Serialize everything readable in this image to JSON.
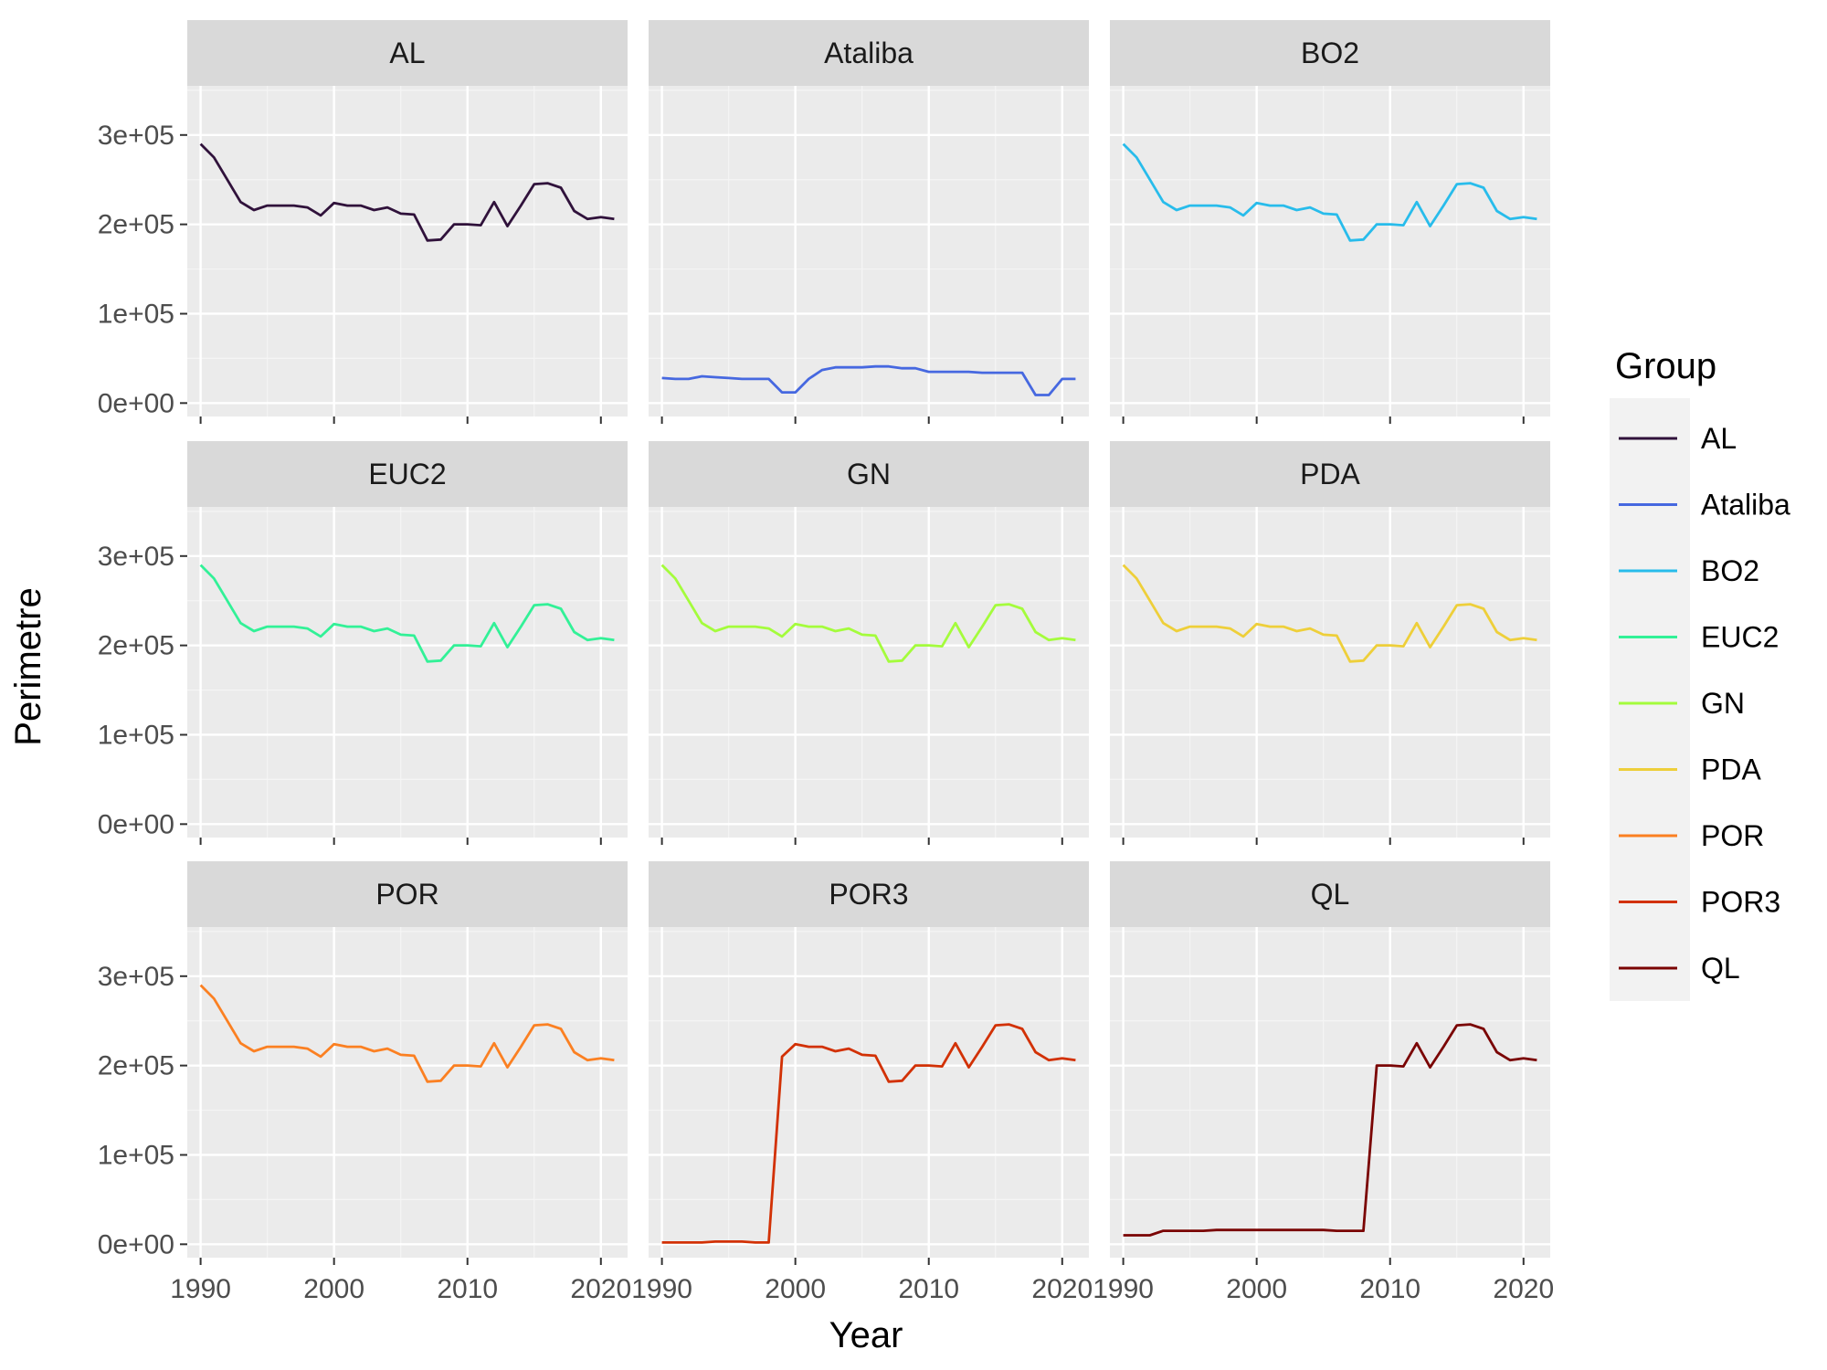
{
  "chart_data": {
    "type": "line",
    "xlabel": "Year",
    "ylabel": "Perimetre",
    "xlim": [
      1989,
      2022
    ],
    "ylim": [
      -15000,
      355000
    ],
    "x_ticks": [
      1990,
      2000,
      2010,
      2020
    ],
    "x_tick_labels": [
      "1990",
      "2000",
      "2010",
      "2020"
    ],
    "y_ticks": [
      0,
      100000,
      200000,
      300000
    ],
    "y_tick_labels": [
      "0e+00",
      "1e+05",
      "2e+05",
      "3e+05"
    ],
    "facets_layout": "3x3",
    "grid": true,
    "legend": {
      "title": "Group",
      "position": "right",
      "entries": [
        "AL",
        "Ataliba",
        "BO2",
        "EUC2",
        "GN",
        "PDA",
        "POR",
        "POR3",
        "QL"
      ]
    },
    "x": [
      1990,
      1991,
      1992,
      1993,
      1994,
      1995,
      1996,
      1997,
      1998,
      1999,
      2000,
      2001,
      2002,
      2003,
      2004,
      2005,
      2006,
      2007,
      2008,
      2009,
      2010,
      2011,
      2012,
      2013,
      2014,
      2015,
      2016,
      2017,
      2018,
      2019,
      2020,
      2021
    ],
    "series": [
      {
        "name": "AL",
        "color": "#30123b",
        "values": [
          290000,
          275000,
          250000,
          225000,
          216000,
          221000,
          221000,
          221000,
          219000,
          210000,
          224000,
          221000,
          221000,
          216000,
          219000,
          212000,
          211000,
          182000,
          183000,
          200000,
          200000,
          199000,
          225000,
          198000,
          221000,
          245000,
          246000,
          241000,
          215000,
          206000,
          208000,
          206000
        ]
      },
      {
        "name": "Ataliba",
        "color": "#4668e0",
        "values": [
          28000,
          27000,
          27000,
          30000,
          29000,
          28000,
          27000,
          27000,
          27000,
          12000,
          12000,
          27000,
          37000,
          40000,
          40000,
          40000,
          41000,
          41000,
          39000,
          39000,
          35000,
          35000,
          35000,
          35000,
          34000,
          34000,
          34000,
          34000,
          9000,
          9000,
          27000,
          27000
        ]
      },
      {
        "name": "BO2",
        "color": "#28bceb",
        "values": [
          290000,
          275000,
          250000,
          225000,
          216000,
          221000,
          221000,
          221000,
          219000,
          210000,
          224000,
          221000,
          221000,
          216000,
          219000,
          212000,
          211000,
          182000,
          183000,
          200000,
          200000,
          199000,
          225000,
          198000,
          221000,
          245000,
          246000,
          241000,
          215000,
          206000,
          208000,
          206000
        ]
      },
      {
        "name": "EUC2",
        "color": "#32f197",
        "values": [
          290000,
          275000,
          250000,
          225000,
          216000,
          221000,
          221000,
          221000,
          219000,
          210000,
          224000,
          221000,
          221000,
          216000,
          219000,
          212000,
          211000,
          182000,
          183000,
          200000,
          200000,
          199000,
          225000,
          198000,
          221000,
          245000,
          246000,
          241000,
          215000,
          206000,
          208000,
          206000
        ]
      },
      {
        "name": "GN",
        "color": "#a4fc3c",
        "values": [
          290000,
          275000,
          250000,
          225000,
          216000,
          221000,
          221000,
          221000,
          219000,
          210000,
          224000,
          221000,
          221000,
          216000,
          219000,
          212000,
          211000,
          182000,
          183000,
          200000,
          200000,
          199000,
          225000,
          198000,
          221000,
          245000,
          246000,
          241000,
          215000,
          206000,
          208000,
          206000
        ]
      },
      {
        "name": "PDA",
        "color": "#eecf3a",
        "values": [
          290000,
          275000,
          250000,
          225000,
          216000,
          221000,
          221000,
          221000,
          219000,
          210000,
          224000,
          221000,
          221000,
          216000,
          219000,
          212000,
          211000,
          182000,
          183000,
          200000,
          200000,
          199000,
          225000,
          198000,
          221000,
          245000,
          246000,
          241000,
          215000,
          206000,
          208000,
          206000
        ]
      },
      {
        "name": "POR",
        "color": "#fb8022",
        "values": [
          290000,
          275000,
          250000,
          225000,
          216000,
          221000,
          221000,
          221000,
          219000,
          210000,
          224000,
          221000,
          221000,
          216000,
          219000,
          212000,
          211000,
          182000,
          183000,
          200000,
          200000,
          199000,
          225000,
          198000,
          221000,
          245000,
          246000,
          241000,
          215000,
          206000,
          208000,
          206000
        ]
      },
      {
        "name": "POR3",
        "color": "#d23105",
        "values": [
          2000,
          2000,
          2000,
          2000,
          3000,
          3000,
          3000,
          2000,
          2000,
          210000,
          224000,
          221000,
          221000,
          216000,
          219000,
          212000,
          211000,
          182000,
          183000,
          200000,
          200000,
          199000,
          225000,
          198000,
          221000,
          245000,
          246000,
          241000,
          215000,
          206000,
          208000,
          206000
        ]
      },
      {
        "name": "QL",
        "color": "#7a0403",
        "values": [
          10000,
          10000,
          10000,
          15000,
          15000,
          15000,
          15000,
          16000,
          16000,
          16000,
          16000,
          16000,
          16000,
          16000,
          16000,
          16000,
          15000,
          15000,
          15000,
          200000,
          200000,
          199000,
          225000,
          198000,
          221000,
          245000,
          246000,
          241000,
          215000,
          206000,
          208000,
          206000
        ]
      }
    ]
  }
}
